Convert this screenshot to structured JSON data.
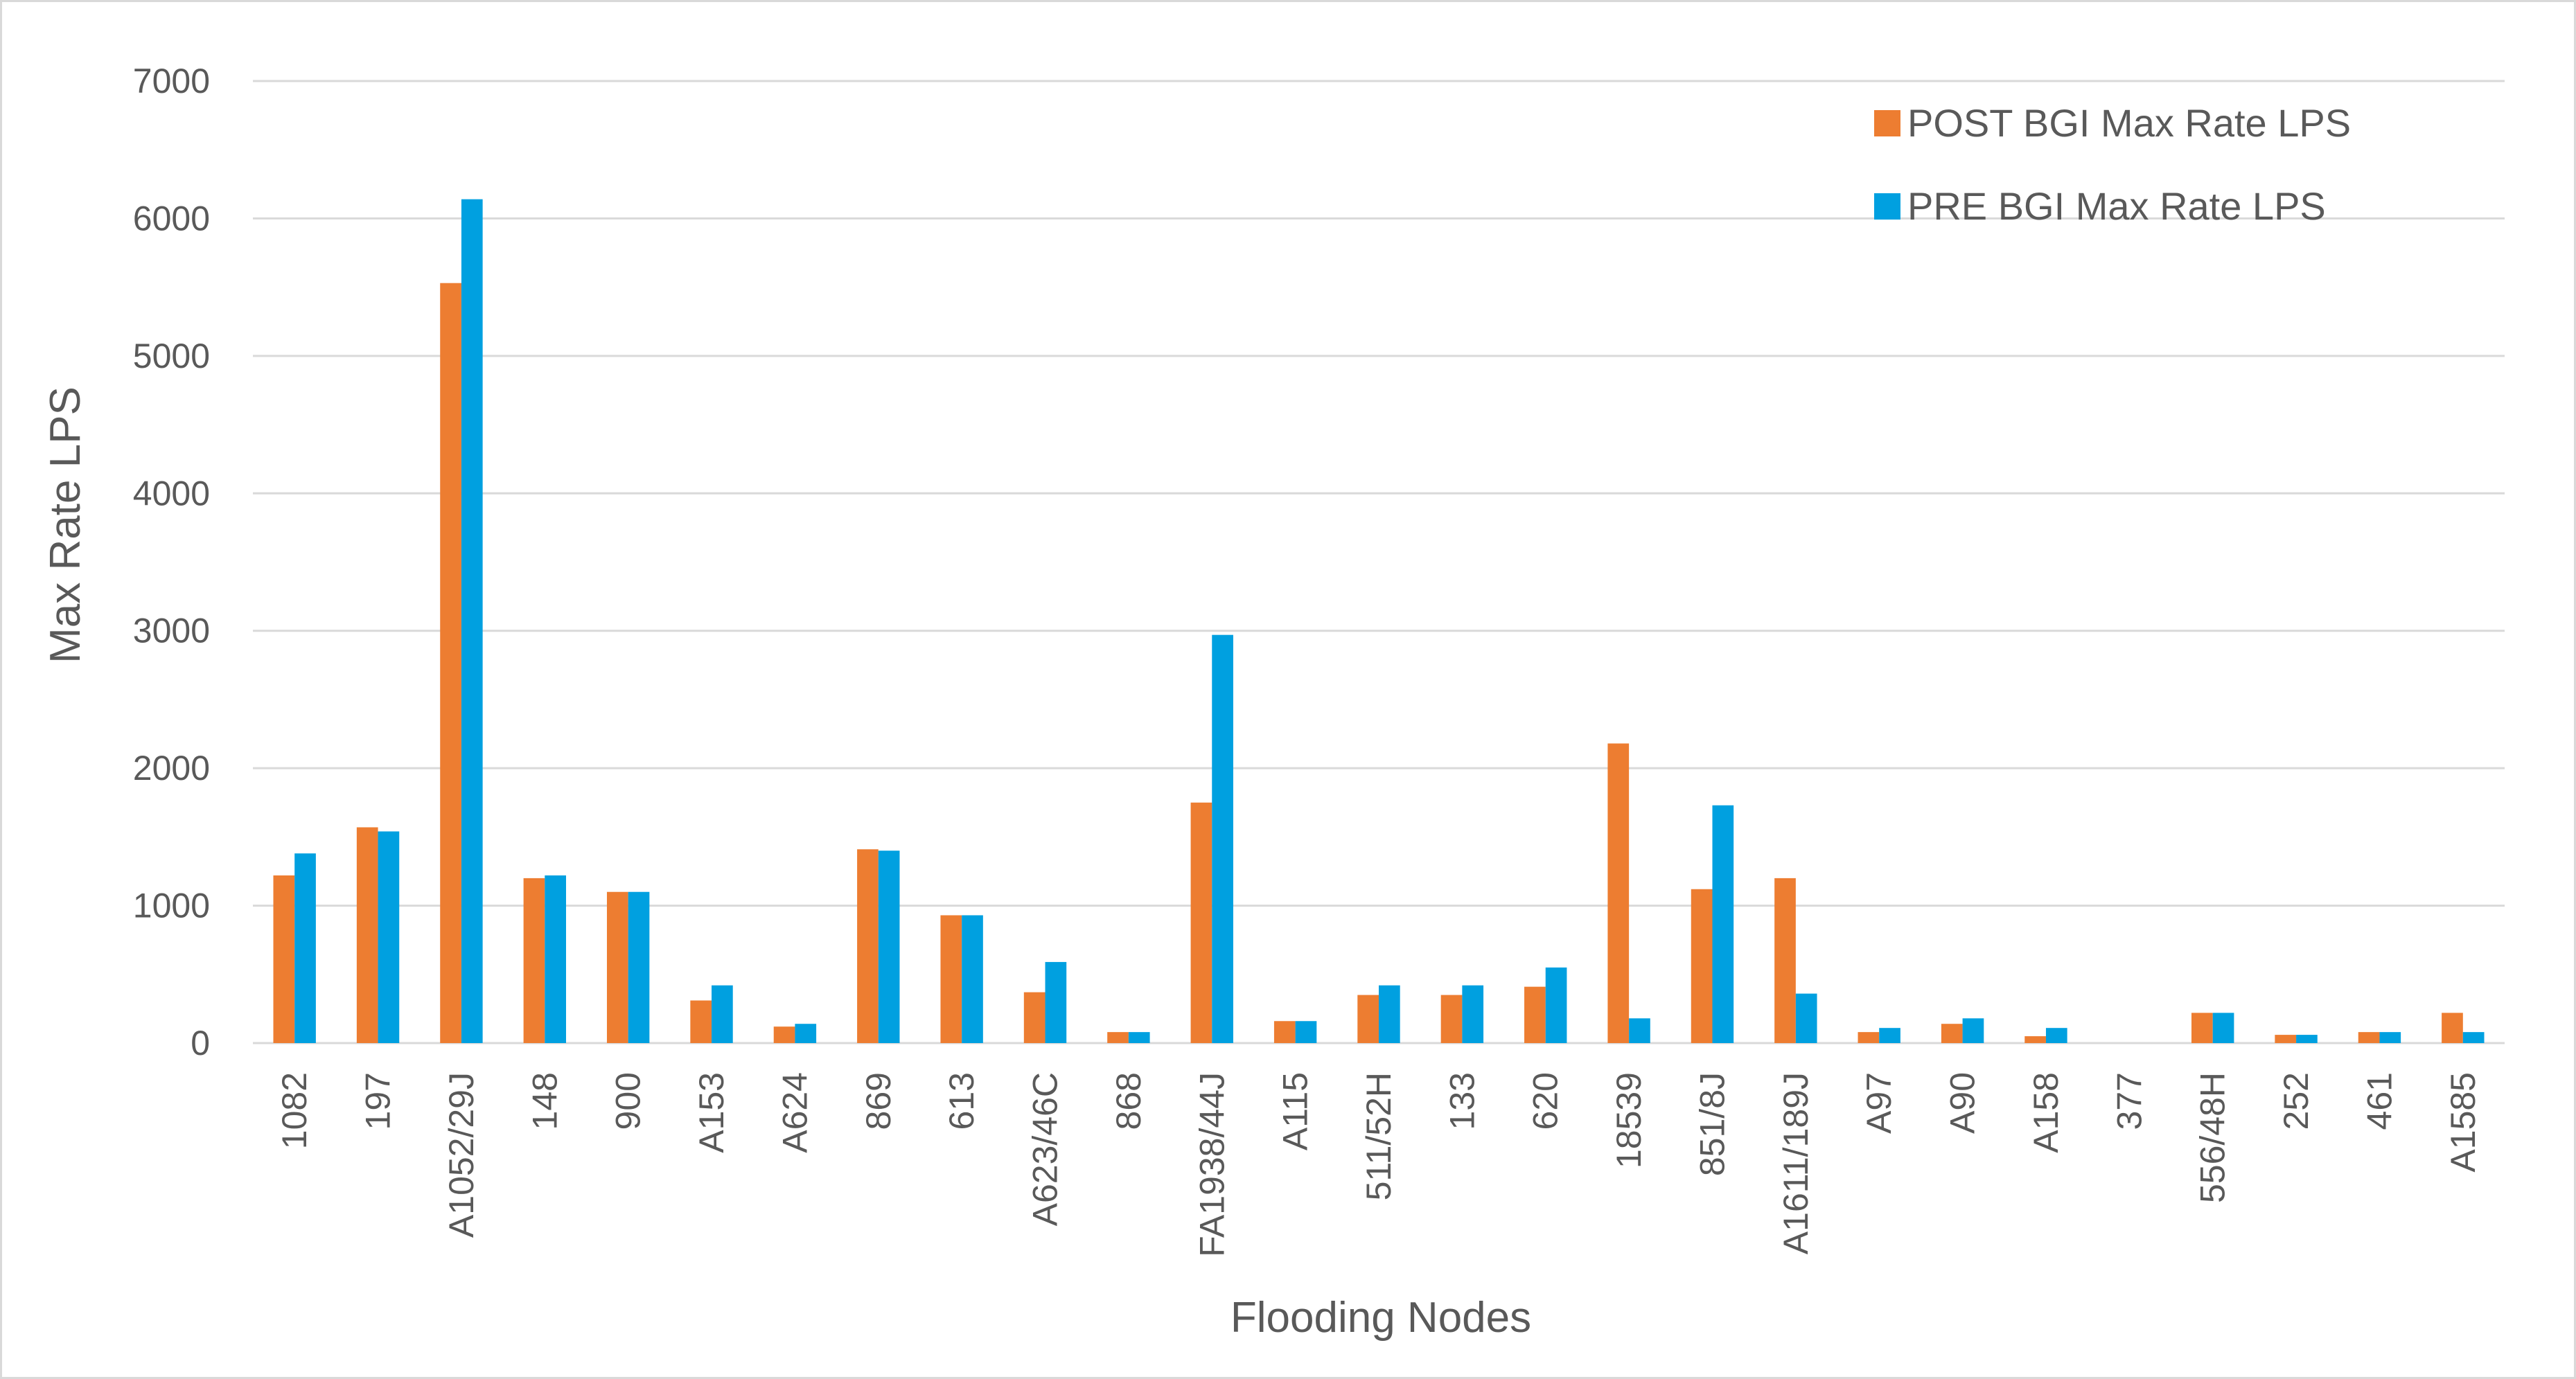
{
  "chart_data": {
    "type": "bar",
    "title": "",
    "xlabel": "Flooding Nodes",
    "ylabel": "Max Rate LPS",
    "ylim": [
      0,
      7000
    ],
    "yticks": [
      0,
      1000,
      2000,
      3000,
      4000,
      5000,
      6000,
      7000
    ],
    "grid": true,
    "legend_position": "top-right",
    "categories": [
      "1082",
      "197",
      "A1052/29J",
      "148",
      "900",
      "A153",
      "A624",
      "869",
      "613",
      "A623/46C",
      "868",
      "FA1938/44J",
      "A115",
      "511/52H",
      "133",
      "620",
      "18539",
      "851/8J",
      "A1611/189J",
      "A97",
      "A90",
      "A158",
      "377",
      "556/48H",
      "252",
      "461",
      "A1585"
    ],
    "series": [
      {
        "name": "POST BGI Max Rate LPS",
        "color": "#ed7d31",
        "values": [
          1220,
          1570,
          5530,
          1200,
          1100,
          310,
          120,
          1410,
          930,
          370,
          80,
          1750,
          160,
          350,
          350,
          410,
          2180,
          1120,
          1200,
          80,
          140,
          50,
          0,
          220,
          60,
          80,
          220
        ]
      },
      {
        "name": "PRE BGI Max Rate LPS",
        "color": "#00a0e0",
        "values": [
          1380,
          1540,
          6140,
          1220,
          1100,
          420,
          140,
          1400,
          930,
          590,
          80,
          2970,
          160,
          420,
          420,
          550,
          180,
          1730,
          360,
          110,
          180,
          110,
          0,
          220,
          60,
          80,
          80
        ]
      }
    ]
  }
}
